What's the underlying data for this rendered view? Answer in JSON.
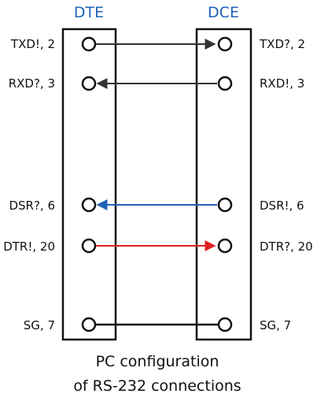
{
  "diagram": {
    "dte_title": "DTE",
    "dce_title": "DCE",
    "caption_line1": "PC configuration",
    "caption_line2": "of RS-232 connections",
    "title_color": "#1f63b5",
    "signals": [
      {
        "key": "txd",
        "left": "TXD!, 2",
        "right": "TXD?, 2",
        "direction": "dte-to-dce",
        "color": "#333333"
      },
      {
        "key": "rxd",
        "left": "RXD?, 3",
        "right": "RXD!, 3",
        "direction": "dce-to-dte",
        "color": "#333333"
      },
      {
        "key": "dsr",
        "left": "DSR?, 6",
        "right": "DSR!, 6",
        "direction": "dce-to-dte",
        "color": "#1f63b5"
      },
      {
        "key": "dtr",
        "left": "DTR!, 20",
        "right": "DTR?, 20",
        "direction": "dte-to-dce",
        "color": "#e02020"
      },
      {
        "key": "sg",
        "left": "SG, 7",
        "right": "SG, 7",
        "direction": "none",
        "color": "#111111"
      }
    ]
  }
}
